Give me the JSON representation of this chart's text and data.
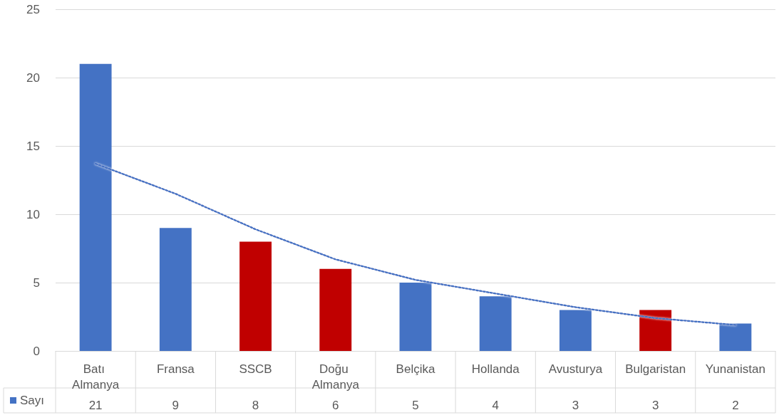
{
  "chart_data": {
    "type": "bar",
    "categories": [
      "Batı Almanya",
      "Fransa",
      "SSCB",
      "Doğu Almanya",
      "Belçika",
      "Hollanda",
      "Avusturya",
      "Bulgaristan",
      "Yunanistan"
    ],
    "series": [
      {
        "name": "Sayı",
        "color": "#4472c4",
        "colors": [
          "#4472c4",
          "#4472c4",
          "#c00000",
          "#c00000",
          "#4472c4",
          "#4472c4",
          "#4472c4",
          "#c00000",
          "#4472c4"
        ],
        "values": [
          21,
          9,
          8,
          6,
          5,
          4,
          3,
          3,
          2
        ],
        "value_labels": [
          "21",
          "9",
          "8",
          "6",
          "5",
          "4",
          "3",
          "3",
          "2"
        ]
      },
      {
        "type": "line",
        "line_style": "dotted",
        "marker": "none",
        "color": "#4472c4",
        "x": [
          "Batı Almanya",
          "Fransa",
          "SSCB",
          "Doğu Almanya",
          "Belçika",
          "Hollanda",
          "Avusturya",
          "Bulgaristan",
          "Yunanistan"
        ],
        "values": [
          13.7,
          11.5,
          8.9,
          6.7,
          5.2,
          4.2,
          3.2,
          2.4,
          1.9
        ]
      }
    ],
    "ylim": [
      0,
      25
    ],
    "yticks": [
      0,
      5,
      10,
      15,
      20,
      25
    ],
    "grid": "y",
    "legend": "bottom"
  }
}
